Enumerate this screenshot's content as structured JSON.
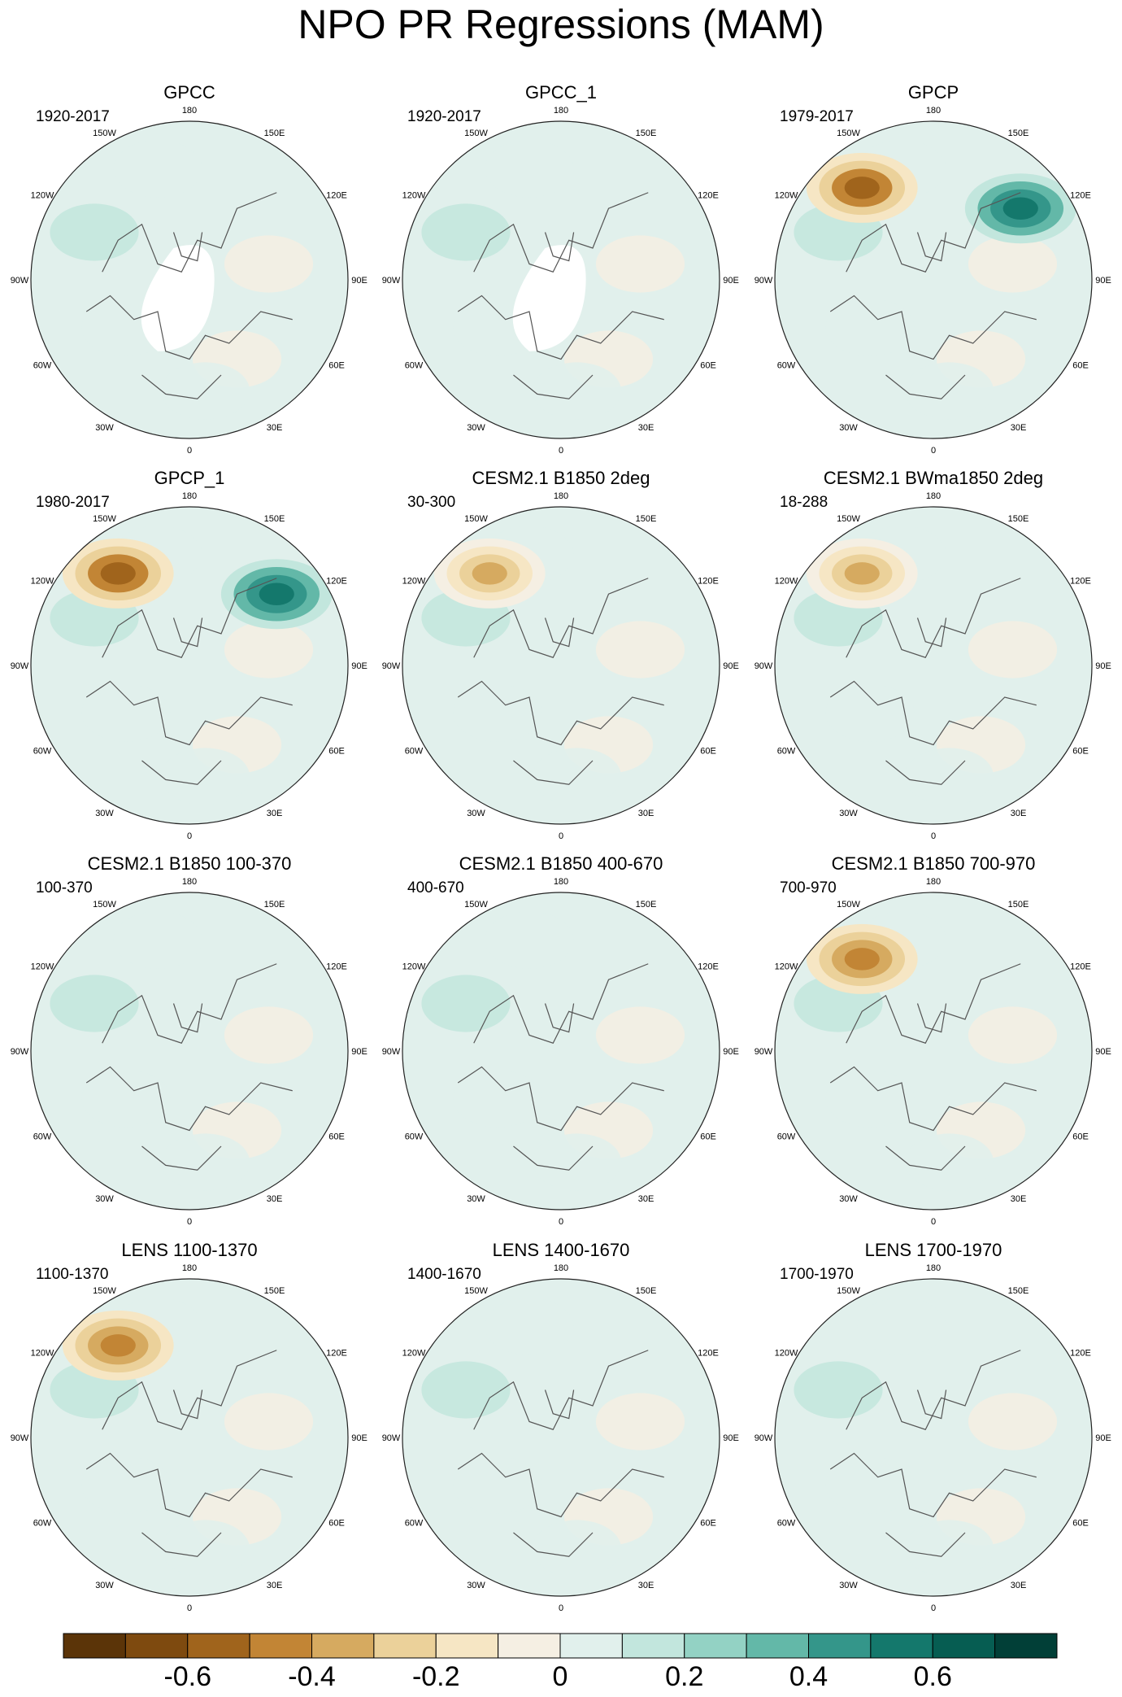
{
  "title": "NPO PR Regressions (MAM)",
  "lon_labels": [
    "180",
    "150E",
    "120E",
    "90E",
    "60E",
    "30E",
    "0",
    "30W",
    "60W",
    "90W",
    "120W",
    "150W"
  ],
  "colors": {
    "ocean_neutral": "#f6efe3",
    "land_outline": "#555555",
    "missing": "#ffffff",
    "rim": "#222222"
  },
  "panels": [
    {
      "title": "GPCC",
      "period": "1920-2017",
      "missing_region": true
    },
    {
      "title": "GPCC_1",
      "period": "1920-2017",
      "missing_region": true
    },
    {
      "title": "GPCP",
      "period": "1979-2017",
      "missing_region": false
    },
    {
      "title": "GPCP_1",
      "period": "1980-2017",
      "missing_region": false
    },
    {
      "title": "CESM2.1 B1850 2deg",
      "period": "30-300",
      "missing_region": false
    },
    {
      "title": "CESM2.1 BWma1850 2deg",
      "period": "18-288",
      "missing_region": false
    },
    {
      "title": "CESM2.1 B1850 100-370",
      "period": "100-370",
      "missing_region": false
    },
    {
      "title": "CESM2.1 B1850 400-670",
      "period": "400-670",
      "missing_region": false
    },
    {
      "title": "CESM2.1 B1850 700-970",
      "period": "700-970",
      "missing_region": false
    },
    {
      "title": "LENS 1100-1370",
      "period": "1100-1370",
      "missing_region": false
    },
    {
      "title": "LENS 1400-1670",
      "period": "1400-1670",
      "missing_region": false
    },
    {
      "title": "LENS 1700-1970",
      "period": "1700-1970",
      "missing_region": false
    }
  ],
  "chart_data": {
    "type": "heatmap",
    "projection": "north polar stereographic",
    "field": "Precipitation regression on NPO index",
    "season": "MAM",
    "layout": "4 rows x 3 columns",
    "colorbar": {
      "min": -0.8,
      "max": 0.8,
      "step": 0.1,
      "tick_values": [
        -0.6,
        -0.4,
        -0.2,
        0,
        0.2,
        0.4,
        0.6
      ],
      "tick_labels": [
        "-0.6",
        "-0.4",
        "-0.2",
        "0",
        "0.2",
        "0.4",
        "0.6"
      ],
      "colors": [
        "#5b3408",
        "#7e4a0f",
        "#a0641c",
        "#c28535",
        "#d6aa60",
        "#ebd19a",
        "#f6e6c4",
        "#f5efe3",
        "#e1f0ec",
        "#c2e6dd",
        "#93d2c4",
        "#63b8a8",
        "#34968a",
        "#14786c",
        "#065d52",
        "#013f37"
      ]
    },
    "notable_features": [
      {
        "panel": "GPCP",
        "region": "North Pacific (near 150W)",
        "sign": "negative",
        "magnitude": -0.6
      },
      {
        "panel": "GPCP",
        "region": "Western Pacific / Japan (near 130E)",
        "sign": "positive",
        "magnitude": 0.6
      },
      {
        "panel": "GPCP_1",
        "region": "North Pacific (near 150W)",
        "sign": "negative",
        "magnitude": -0.6
      },
      {
        "panel": "GPCP_1",
        "region": "Western Pacific / Japan (near 130E)",
        "sign": "positive",
        "magnitude": 0.6
      },
      {
        "panel": "CESM2.1 B1850 2deg",
        "region": "North Pacific (near 160W)",
        "sign": "negative",
        "magnitude": -0.4
      },
      {
        "panel": "CESM2.1 BWma1850 2deg",
        "region": "North Pacific (near 160W)",
        "sign": "negative",
        "magnitude": -0.4
      },
      {
        "panel": "CESM2.1 B1850 700-970",
        "region": "North Pacific (near 160W)",
        "sign": "negative",
        "magnitude": -0.5
      },
      {
        "panel": "LENS 1100-1370",
        "region": "North Pacific (near 150W)",
        "sign": "negative",
        "magnitude": -0.5
      }
    ]
  }
}
